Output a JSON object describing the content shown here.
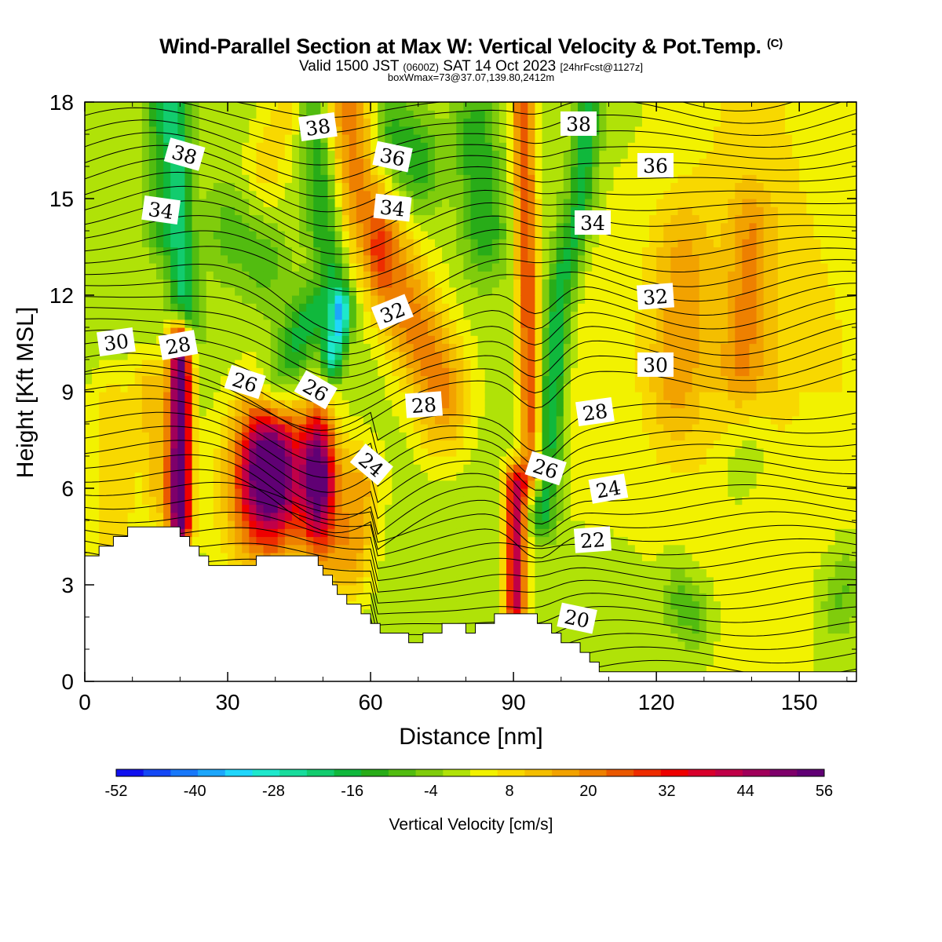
{
  "header": {
    "title": "Wind-Parallel Section at Max W: Vertical Velocity & Pot.Temp.",
    "copyright": "(C)",
    "valid_prefix": "Valid 1500 JST",
    "valid_utc": "(0600Z)",
    "valid_date": "SAT 14 Oct 2023",
    "forecast": "[24hrFcst@1127z]",
    "box_info": "boxWmax=73@37.07,139.80,2412m"
  },
  "chart_data": {
    "type": "heatmap",
    "xlabel": "Distance [nm]",
    "ylabel": "Height [Kft MSL]",
    "xlim": [
      0,
      162
    ],
    "ylim": [
      0,
      18
    ],
    "x_ticks": [
      "0",
      "30",
      "60",
      "90",
      "120",
      "150"
    ],
    "y_ticks": [
      "0",
      "3",
      "6",
      "9",
      "12",
      "15",
      "18"
    ],
    "colorbar": {
      "title": "Vertical Velocity [cm/s]",
      "tick_labels": [
        "-52",
        "-40",
        "-28",
        "-16",
        "-4",
        "8",
        "20",
        "32",
        "44",
        "56"
      ],
      "colors": [
        "#1010ef",
        "#1448f5",
        "#1878fa",
        "#1ca6fb",
        "#20d6fb",
        "#1ee8cc",
        "#18dc9c",
        "#12cc6e",
        "#10b83c",
        "#28ac18",
        "#52bc10",
        "#80cc0c",
        "#b0e208",
        "#f2f200",
        "#f8d800",
        "#f4be00",
        "#f2a200",
        "#ee8000",
        "#ea5800",
        "#ee2c00",
        "#ee0000",
        "#d8002c",
        "#c00048",
        "#a0005a",
        "#7e006a",
        "#600074"
      ]
    },
    "theta_label_values": [
      "38",
      "38",
      "38",
      "36",
      "36",
      "34",
      "34",
      "34",
      "32",
      "32",
      "30",
      "30",
      "28",
      "28",
      "28",
      "26",
      "26",
      "26",
      "24",
      "24",
      "22",
      "20"
    ],
    "vertical_velocity_features": [
      {
        "x_nm": 20,
        "z_kft": 8,
        "w_cms": 56
      },
      {
        "x_nm": 39,
        "z_kft": 6.6,
        "w_cms": 56
      },
      {
        "x_nm": 49,
        "z_kft": 6.4,
        "w_cms": 48
      },
      {
        "x_nm": 90.5,
        "z_kft": 4.3,
        "w_cms": 40
      },
      {
        "x_nm": 94,
        "z_kft": 13,
        "w_cms": 26
      },
      {
        "x_nm": 61,
        "z_kft": 13.2,
        "w_cms": 24
      },
      {
        "x_nm": 52,
        "z_kft": 10.5,
        "w_cms": -26
      },
      {
        "x_nm": 21,
        "z_kft": 16.5,
        "w_cms": -24
      },
      {
        "x_nm": 97,
        "z_kft": 6.2,
        "w_cms": -24
      },
      {
        "x_nm": 104,
        "z_kft": 14.5,
        "w_cms": -16
      }
    ],
    "terrain_kft": [
      [
        0,
        3.9
      ],
      [
        3,
        4.2
      ],
      [
        6,
        4.5
      ],
      [
        9,
        4.8
      ],
      [
        18,
        4.8
      ],
      [
        20,
        4.5
      ],
      [
        22,
        4.2
      ],
      [
        24,
        3.9
      ],
      [
        26,
        3.6
      ],
      [
        30,
        3.6
      ],
      [
        36,
        3.9
      ],
      [
        46,
        3.9
      ],
      [
        49,
        3.6
      ],
      [
        50,
        3.3
      ],
      [
        52,
        3.0
      ],
      [
        53,
        2.7
      ],
      [
        55,
        2.4
      ],
      [
        58,
        2.1
      ],
      [
        60,
        1.8
      ],
      [
        62,
        1.5
      ],
      [
        68,
        1.2
      ],
      [
        71,
        1.5
      ],
      [
        75,
        1.8
      ],
      [
        80,
        1.5
      ],
      [
        82,
        1.8
      ],
      [
        86,
        2.1
      ],
      [
        95,
        1.8
      ],
      [
        98,
        1.5
      ],
      [
        100,
        1.2
      ],
      [
        104,
        0.9
      ],
      [
        106,
        0.6
      ],
      [
        108,
        0.3
      ],
      [
        162,
        0.3
      ]
    ]
  }
}
